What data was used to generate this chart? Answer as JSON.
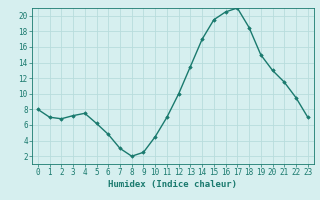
{
  "x": [
    0,
    1,
    2,
    3,
    4,
    5,
    6,
    7,
    8,
    9,
    10,
    11,
    12,
    13,
    14,
    15,
    16,
    17,
    18,
    19,
    20,
    21,
    22,
    23
  ],
  "y": [
    8.0,
    7.0,
    6.8,
    7.2,
    7.5,
    6.2,
    4.8,
    3.0,
    2.0,
    2.5,
    4.5,
    7.0,
    10.0,
    13.5,
    17.0,
    19.5,
    20.5,
    21.0,
    18.5,
    15.0,
    13.0,
    11.5,
    9.5,
    7.0
  ],
  "line_color": "#1a7a6e",
  "marker": "D",
  "markersize": 1.8,
  "linewidth": 1.0,
  "bg_color": "#d6efef",
  "grid_color": "#b8dcdc",
  "xlabel": "Humidex (Indice chaleur)",
  "xlim": [
    -0.5,
    23.5
  ],
  "ylim": [
    1,
    21
  ],
  "yticks": [
    2,
    4,
    6,
    8,
    10,
    12,
    14,
    16,
    18,
    20
  ],
  "xticks": [
    0,
    1,
    2,
    3,
    4,
    5,
    6,
    7,
    8,
    9,
    10,
    11,
    12,
    13,
    14,
    15,
    16,
    17,
    18,
    19,
    20,
    21,
    22,
    23
  ],
  "tick_color": "#1a7a6e",
  "label_color": "#1a7a6e",
  "xlabel_fontsize": 6.5,
  "tick_fontsize": 5.5
}
